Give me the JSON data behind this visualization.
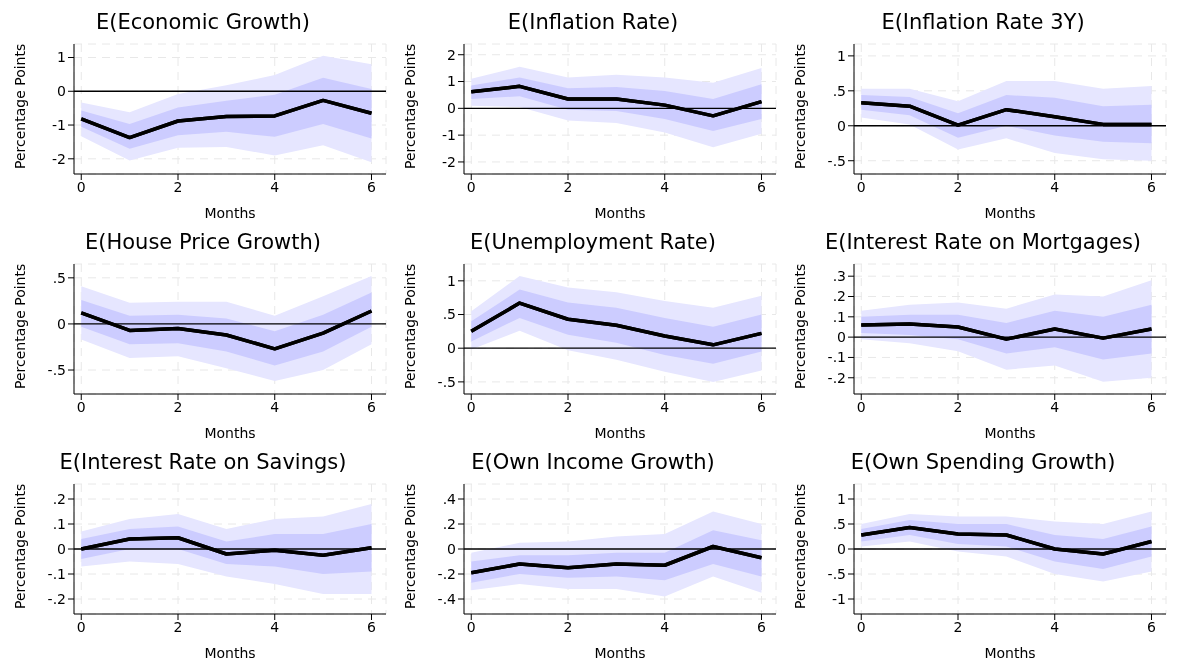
{
  "chart_data": [
    {
      "type": "line",
      "title": "E(Economic Growth)",
      "xlabel": "Months",
      "ylabel": "Percentage Points",
      "x": [
        0,
        1,
        2,
        3,
        4,
        5,
        6
      ],
      "xlim": [
        -0.15,
        6.3
      ],
      "xticks": [
        0,
        2,
        4,
        6
      ],
      "ylim": [
        -2.45,
        1.4
      ],
      "yticks": [
        -2,
        -1,
        0,
        1
      ],
      "grid": true,
      "ref_lines": [
        {
          "axis": "y",
          "value": 0,
          "color": "#000000"
        }
      ],
      "series": [
        {
          "color": "#000000",
          "values": [
            -0.82,
            -1.37,
            -0.88,
            -0.75,
            -0.73,
            -0.27,
            -0.65
          ],
          "lower": [
            -1.33,
            -2.05,
            -1.67,
            -1.65,
            -1.9,
            -1.6,
            -2.1
          ],
          "upper": [
            -0.33,
            -0.62,
            -0.08,
            0.18,
            0.48,
            1.05,
            0.8
          ]
        },
        {
          "color": "#000000",
          "values": [
            -0.82,
            -1.37,
            -0.88,
            -0.75,
            -0.73,
            -0.27,
            -0.65
          ],
          "lower": [
            -1.05,
            -1.7,
            -1.3,
            -1.2,
            -1.35,
            -0.97,
            -1.4
          ],
          "upper": [
            -0.57,
            -0.97,
            -0.48,
            -0.28,
            -0.1,
            0.4,
            0.07
          ]
        }
      ]
    },
    {
      "type": "line",
      "title": "E(Inflation Rate)",
      "xlabel": "Months",
      "ylabel": "Percentage Points",
      "x": [
        0,
        1,
        2,
        3,
        4,
        5,
        6
      ],
      "xlim": [
        -0.15,
        6.3
      ],
      "xticks": [
        0,
        2,
        4,
        6
      ],
      "ylim": [
        -2.45,
        2.4
      ],
      "yticks": [
        -2,
        -1,
        0,
        1,
        2
      ],
      "grid": true,
      "ref_lines": [
        {
          "axis": "y",
          "value": 0,
          "color": "#000000"
        }
      ],
      "series": [
        {
          "color": "#000000",
          "values": [
            0.62,
            0.82,
            0.35,
            0.35,
            0.12,
            -0.28,
            0.25
          ],
          "lower": [
            0.1,
            0.05,
            -0.45,
            -0.55,
            -0.9,
            -1.45,
            -0.95
          ],
          "upper": [
            1.1,
            1.55,
            1.15,
            1.25,
            1.15,
            0.95,
            1.5
          ]
        },
        {
          "color": "#000000",
          "values": [
            0.62,
            0.82,
            0.35,
            0.35,
            0.12,
            -0.28,
            0.25
          ],
          "lower": [
            0.35,
            0.45,
            -0.05,
            -0.1,
            -0.4,
            -0.85,
            -0.4
          ],
          "upper": [
            0.85,
            1.15,
            0.75,
            0.8,
            0.65,
            0.35,
            0.9
          ]
        }
      ]
    },
    {
      "type": "line",
      "title": "E(Inflation Rate 3Y)",
      "xlabel": "Months",
      "ylabel": "Percentage Points",
      "x": [
        0,
        1,
        2,
        3,
        4,
        5,
        6
      ],
      "xlim": [
        -0.15,
        6.3
      ],
      "xticks": [
        0,
        2,
        4,
        6
      ],
      "ylim": [
        -0.69,
        1.17
      ],
      "yticks": [
        {
          "value": -0.5,
          "label": "-.5"
        },
        0,
        {
          "value": 0.5,
          "label": ".5"
        },
        1
      ],
      "grid": true,
      "ref_lines": [
        {
          "axis": "y",
          "value": 0,
          "color": "#000000"
        }
      ],
      "series": [
        {
          "color": "#000000",
          "values": [
            0.33,
            0.28,
            0.01,
            0.23,
            0.13,
            0.02,
            0.02
          ],
          "lower": [
            0.12,
            0.02,
            -0.34,
            -0.18,
            -0.39,
            -0.48,
            -0.5
          ],
          "upper": [
            0.53,
            0.53,
            0.35,
            0.64,
            0.64,
            0.53,
            0.57
          ]
        },
        {
          "color": "#000000",
          "values": [
            0.33,
            0.28,
            0.01,
            0.23,
            0.13,
            0.02,
            0.02
          ],
          "lower": [
            0.23,
            0.15,
            -0.17,
            0.0,
            -0.14,
            -0.23,
            -0.25
          ],
          "upper": [
            0.44,
            0.41,
            0.18,
            0.44,
            0.4,
            0.28,
            0.3
          ]
        }
      ]
    },
    {
      "type": "line",
      "title": "E(House Price Growth)",
      "xlabel": "Months",
      "ylabel": "Percentage Points",
      "x": [
        0,
        1,
        2,
        3,
        4,
        5,
        6
      ],
      "xlim": [
        -0.15,
        6.3
      ],
      "xticks": [
        0,
        2,
        4,
        6
      ],
      "ylim": [
        -0.76,
        0.65
      ],
      "yticks": [
        {
          "value": -0.5,
          "label": "-.5"
        },
        0,
        {
          "value": 0.5,
          "label": ".5"
        }
      ],
      "grid": true,
      "ref_lines": [
        {
          "axis": "y",
          "value": 0,
          "color": "#000000"
        }
      ],
      "series": [
        {
          "color": "#000000",
          "values": [
            0.12,
            -0.07,
            -0.05,
            -0.12,
            -0.27,
            -0.1,
            0.14
          ],
          "lower": [
            -0.17,
            -0.37,
            -0.35,
            -0.48,
            -0.62,
            -0.5,
            -0.22
          ],
          "upper": [
            0.41,
            0.23,
            0.24,
            0.24,
            0.09,
            0.3,
            0.52
          ]
        },
        {
          "color": "#000000",
          "values": [
            0.12,
            -0.07,
            -0.05,
            -0.12,
            -0.27,
            -0.1,
            0.14
          ],
          "lower": [
            -0.03,
            -0.22,
            -0.21,
            -0.3,
            -0.45,
            -0.3,
            -0.03
          ],
          "upper": [
            0.26,
            0.09,
            0.1,
            0.06,
            -0.08,
            0.1,
            0.34
          ]
        }
      ]
    },
    {
      "type": "line",
      "title": "E(Unemployment Rate)",
      "xlabel": "Months",
      "ylabel": "Percentage Points",
      "x": [
        0,
        1,
        2,
        3,
        4,
        5,
        6
      ],
      "xlim": [
        -0.15,
        6.3
      ],
      "xticks": [
        0,
        2,
        4,
        6
      ],
      "ylim": [
        -0.68,
        1.25
      ],
      "yticks": [
        {
          "value": -0.5,
          "label": "-.5"
        },
        0,
        {
          "value": 0.5,
          "label": ".5"
        },
        1
      ],
      "grid": true,
      "ref_lines": [
        {
          "axis": "y",
          "value": 0,
          "color": "#000000"
        }
      ],
      "series": [
        {
          "color": "#000000",
          "values": [
            0.25,
            0.67,
            0.43,
            0.34,
            0.18,
            0.05,
            0.22
          ],
          "lower": [
            -0.02,
            0.26,
            -0.03,
            -0.17,
            -0.35,
            -0.5,
            -0.33
          ],
          "upper": [
            0.55,
            1.07,
            0.9,
            0.83,
            0.7,
            0.6,
            0.78
          ]
        },
        {
          "color": "#000000",
          "values": [
            0.25,
            0.67,
            0.43,
            0.34,
            0.18,
            0.05,
            0.22
          ],
          "lower": [
            0.1,
            0.45,
            0.2,
            0.08,
            -0.1,
            -0.23,
            -0.05
          ],
          "upper": [
            0.4,
            0.87,
            0.68,
            0.6,
            0.45,
            0.32,
            0.5
          ]
        }
      ]
    },
    {
      "type": "line",
      "title": "E(Interest Rate on Mortgages)",
      "xlabel": "Months",
      "ylabel": "Percentage Points",
      "x": [
        0,
        1,
        2,
        3,
        4,
        5,
        6
      ],
      "xlim": [
        -0.15,
        6.3
      ],
      "xticks": [
        0,
        2,
        4,
        6
      ],
      "ylim": [
        -0.28,
        0.36
      ],
      "yticks": [
        {
          "value": -0.2,
          "label": "-.2"
        },
        {
          "value": -0.1,
          "label": "-.1"
        },
        0,
        {
          "value": 0.1,
          "label": ".1"
        },
        {
          "value": 0.2,
          "label": ".2"
        },
        {
          "value": 0.3,
          "label": ".3"
        }
      ],
      "grid": true,
      "ref_lines": [
        {
          "axis": "y",
          "value": 0,
          "color": "#000000"
        }
      ],
      "series": [
        {
          "color": "#000000",
          "values": [
            0.06,
            0.065,
            0.05,
            -0.01,
            0.04,
            -0.005,
            0.04
          ],
          "lower": [
            -0.01,
            -0.03,
            -0.07,
            -0.16,
            -0.14,
            -0.22,
            -0.2
          ],
          "upper": [
            0.13,
            0.16,
            0.17,
            0.14,
            0.21,
            0.2,
            0.28
          ]
        },
        {
          "color": "#000000",
          "values": [
            0.06,
            0.065,
            0.05,
            -0.01,
            0.04,
            -0.005,
            0.04
          ],
          "lower": [
            0.02,
            0.01,
            -0.01,
            -0.08,
            -0.05,
            -0.11,
            -0.08
          ],
          "upper": [
            0.1,
            0.11,
            0.11,
            0.07,
            0.13,
            0.1,
            0.16
          ]
        }
      ]
    },
    {
      "type": "line",
      "title": "E(Interest Rate on Savings)",
      "xlabel": "Months",
      "ylabel": "Percentage Points",
      "x": [
        0,
        1,
        2,
        3,
        4,
        5,
        6
      ],
      "xlim": [
        -0.15,
        6.3
      ],
      "xticks": [
        0,
        2,
        4,
        6
      ],
      "ylim": [
        -0.26,
        0.26
      ],
      "yticks": [
        {
          "value": -0.2,
          "label": "-.2"
        },
        {
          "value": -0.1,
          "label": "-.1"
        },
        0,
        {
          "value": 0.1,
          "label": ".1"
        },
        {
          "value": 0.2,
          "label": ".2"
        }
      ],
      "grid": true,
      "ref_lines": [
        {
          "axis": "y",
          "value": 0,
          "color": "#000000"
        }
      ],
      "series": [
        {
          "color": "#000000",
          "values": [
            0,
            0.04,
            0.045,
            -0.02,
            -0.005,
            -0.025,
            0.005
          ],
          "lower": [
            -0.07,
            -0.05,
            -0.06,
            -0.11,
            -0.14,
            -0.18,
            -0.18
          ],
          "upper": [
            0.07,
            0.12,
            0.14,
            0.08,
            0.12,
            0.13,
            0.18
          ]
        },
        {
          "color": "#000000",
          "values": [
            0,
            0.04,
            0.045,
            -0.02,
            -0.005,
            -0.025,
            0.005
          ],
          "lower": [
            -0.04,
            0.0,
            0.0,
            -0.06,
            -0.07,
            -0.1,
            -0.09
          ],
          "upper": [
            0.04,
            0.08,
            0.09,
            0.03,
            0.06,
            0.06,
            0.1
          ]
        }
      ]
    },
    {
      "type": "line",
      "title": "E(Own Income Growth)",
      "xlabel": "Months",
      "ylabel": "Percentage Points",
      "x": [
        0,
        1,
        2,
        3,
        4,
        5,
        6
      ],
      "xlim": [
        -0.15,
        6.3
      ],
      "xticks": [
        0,
        2,
        4,
        6
      ],
      "ylim": [
        -0.52,
        0.52
      ],
      "yticks": [
        {
          "value": -0.4,
          "label": "-.4"
        },
        {
          "value": -0.2,
          "label": "-.2"
        },
        0,
        {
          "value": 0.2,
          "label": ".2"
        },
        {
          "value": 0.4,
          "label": ".4"
        }
      ],
      "grid": true,
      "ref_lines": [
        {
          "axis": "y",
          "value": 0,
          "color": "#000000"
        }
      ],
      "series": [
        {
          "color": "#000000",
          "values": [
            -0.19,
            -0.12,
            -0.15,
            -0.12,
            -0.13,
            0.02,
            -0.07
          ],
          "lower": [
            -0.33,
            -0.28,
            -0.32,
            -0.32,
            -0.38,
            -0.22,
            -0.35
          ],
          "upper": [
            -0.03,
            0.05,
            0.06,
            0.1,
            0.12,
            0.3,
            0.2
          ]
        },
        {
          "color": "#000000",
          "values": [
            -0.19,
            -0.12,
            -0.15,
            -0.12,
            -0.13,
            0.02,
            -0.07
          ],
          "lower": [
            -0.27,
            -0.2,
            -0.23,
            -0.22,
            -0.25,
            -0.12,
            -0.22
          ],
          "upper": [
            -0.1,
            -0.05,
            -0.05,
            -0.03,
            -0.03,
            0.15,
            0.07
          ]
        }
      ]
    },
    {
      "type": "line",
      "title": "E(Own Spending Growth)",
      "xlabel": "Months",
      "ylabel": "Percentage Points",
      "x": [
        0,
        1,
        2,
        3,
        4,
        5,
        6
      ],
      "xlim": [
        -0.15,
        6.3
      ],
      "xticks": [
        0,
        2,
        4,
        6
      ],
      "ylim": [
        -1.3,
        1.3
      ],
      "yticks": [
        -1,
        {
          "value": -0.5,
          "label": "-.5"
        },
        0,
        {
          "value": 0.5,
          "label": ".5"
        },
        1
      ],
      "grid": true,
      "ref_lines": [
        {
          "axis": "y",
          "value": 0,
          "color": "#000000"
        }
      ],
      "series": [
        {
          "color": "#000000",
          "values": [
            0.28,
            0.43,
            0.3,
            0.28,
            0.0,
            -0.1,
            0.15
          ],
          "lower": [
            0.05,
            0.15,
            -0.05,
            -0.15,
            -0.5,
            -0.65,
            -0.45
          ],
          "upper": [
            0.5,
            0.7,
            0.65,
            0.65,
            0.55,
            0.5,
            0.75
          ]
        },
        {
          "color": "#000000",
          "values": [
            0.28,
            0.43,
            0.3,
            0.28,
            0.0,
            -0.1,
            0.15
          ],
          "lower": [
            0.15,
            0.28,
            0.1,
            0.05,
            -0.25,
            -0.4,
            -0.15
          ],
          "upper": [
            0.4,
            0.58,
            0.5,
            0.5,
            0.28,
            0.2,
            0.45
          ]
        }
      ]
    }
  ]
}
